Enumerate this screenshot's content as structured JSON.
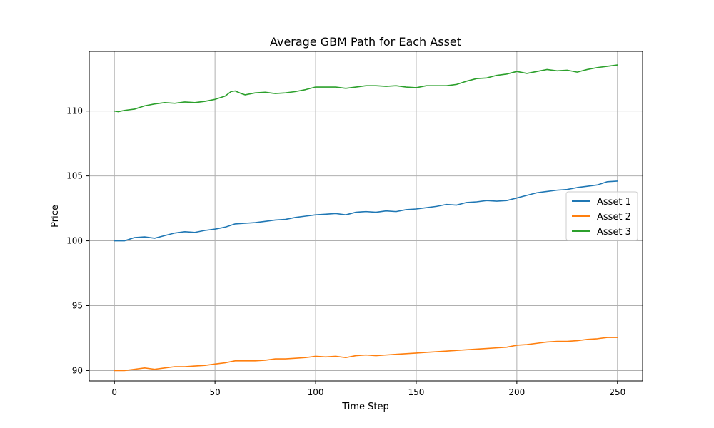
{
  "chart_data": {
    "type": "line",
    "title": "Average GBM Path for Each Asset",
    "xlabel": "Time Step",
    "ylabel": "Price",
    "xlim": [
      -12.5,
      262.5
    ],
    "ylim": [
      89.2,
      114.6
    ],
    "xticks": [
      0,
      50,
      100,
      150,
      200,
      250
    ],
    "yticks": [
      90,
      95,
      100,
      105,
      110
    ],
    "grid": true,
    "legend_position": "center-right",
    "series": [
      {
        "name": "Asset 1",
        "color": "#1f77b4",
        "points": [
          [
            0,
            100.0
          ],
          [
            5,
            100.0
          ],
          [
            10,
            100.25
          ],
          [
            15,
            100.3
          ],
          [
            20,
            100.2
          ],
          [
            25,
            100.4
          ],
          [
            30,
            100.6
          ],
          [
            35,
            100.7
          ],
          [
            40,
            100.65
          ],
          [
            45,
            100.8
          ],
          [
            50,
            100.9
          ],
          [
            55,
            101.05
          ],
          [
            60,
            101.3
          ],
          [
            65,
            101.35
          ],
          [
            70,
            101.4
          ],
          [
            75,
            101.5
          ],
          [
            80,
            101.6
          ],
          [
            85,
            101.65
          ],
          [
            90,
            101.8
          ],
          [
            95,
            101.9
          ],
          [
            100,
            102.0
          ],
          [
            105,
            102.05
          ],
          [
            110,
            102.1
          ],
          [
            115,
            102.0
          ],
          [
            120,
            102.2
          ],
          [
            125,
            102.25
          ],
          [
            130,
            102.2
          ],
          [
            135,
            102.3
          ],
          [
            140,
            102.25
          ],
          [
            145,
            102.4
          ],
          [
            150,
            102.45
          ],
          [
            155,
            102.55
          ],
          [
            160,
            102.65
          ],
          [
            165,
            102.8
          ],
          [
            170,
            102.75
          ],
          [
            175,
            102.95
          ],
          [
            180,
            103.0
          ],
          [
            185,
            103.1
          ],
          [
            190,
            103.05
          ],
          [
            195,
            103.1
          ],
          [
            200,
            103.3
          ],
          [
            205,
            103.5
          ],
          [
            210,
            103.7
          ],
          [
            215,
            103.8
          ],
          [
            220,
            103.9
          ],
          [
            225,
            103.95
          ],
          [
            230,
            104.1
          ],
          [
            235,
            104.2
          ],
          [
            240,
            104.3
          ],
          [
            245,
            104.55
          ],
          [
            250,
            104.6
          ]
        ]
      },
      {
        "name": "Asset 2",
        "color": "#ff7f0e",
        "points": [
          [
            0,
            90.0
          ],
          [
            5,
            90.0
          ],
          [
            10,
            90.1
          ],
          [
            15,
            90.2
          ],
          [
            20,
            90.1
          ],
          [
            25,
            90.2
          ],
          [
            30,
            90.3
          ],
          [
            35,
            90.3
          ],
          [
            40,
            90.35
          ],
          [
            45,
            90.4
          ],
          [
            50,
            90.5
          ],
          [
            55,
            90.6
          ],
          [
            60,
            90.75
          ],
          [
            65,
            90.75
          ],
          [
            70,
            90.75
          ],
          [
            75,
            90.8
          ],
          [
            80,
            90.9
          ],
          [
            85,
            90.9
          ],
          [
            90,
            90.95
          ],
          [
            95,
            91.0
          ],
          [
            100,
            91.1
          ],
          [
            105,
            91.05
          ],
          [
            110,
            91.1
          ],
          [
            115,
            91.0
          ],
          [
            120,
            91.15
          ],
          [
            125,
            91.2
          ],
          [
            130,
            91.15
          ],
          [
            135,
            91.2
          ],
          [
            140,
            91.25
          ],
          [
            145,
            91.3
          ],
          [
            150,
            91.35
          ],
          [
            155,
            91.4
          ],
          [
            160,
            91.45
          ],
          [
            165,
            91.5
          ],
          [
            170,
            91.55
          ],
          [
            175,
            91.6
          ],
          [
            180,
            91.65
          ],
          [
            185,
            91.7
          ],
          [
            190,
            91.75
          ],
          [
            195,
            91.8
          ],
          [
            200,
            91.95
          ],
          [
            205,
            92.0
          ],
          [
            210,
            92.1
          ],
          [
            215,
            92.2
          ],
          [
            220,
            92.25
          ],
          [
            225,
            92.25
          ],
          [
            230,
            92.3
          ],
          [
            235,
            92.4
          ],
          [
            240,
            92.45
          ],
          [
            245,
            92.55
          ],
          [
            250,
            92.55
          ]
        ]
      },
      {
        "name": "Asset 3",
        "color": "#2ca02c",
        "points": [
          [
            0,
            110.0
          ],
          [
            2,
            109.95
          ],
          [
            5,
            110.05
          ],
          [
            10,
            110.15
          ],
          [
            15,
            110.4
          ],
          [
            20,
            110.55
          ],
          [
            25,
            110.65
          ],
          [
            30,
            110.6
          ],
          [
            35,
            110.7
          ],
          [
            40,
            110.65
          ],
          [
            45,
            110.75
          ],
          [
            50,
            110.9
          ],
          [
            55,
            111.15
          ],
          [
            58,
            111.5
          ],
          [
            60,
            111.55
          ],
          [
            63,
            111.35
          ],
          [
            65,
            111.25
          ],
          [
            70,
            111.4
          ],
          [
            75,
            111.45
          ],
          [
            80,
            111.35
          ],
          [
            85,
            111.4
          ],
          [
            90,
            111.5
          ],
          [
            95,
            111.65
          ],
          [
            100,
            111.85
          ],
          [
            105,
            111.85
          ],
          [
            110,
            111.85
          ],
          [
            115,
            111.75
          ],
          [
            120,
            111.85
          ],
          [
            125,
            111.95
          ],
          [
            130,
            111.95
          ],
          [
            135,
            111.9
          ],
          [
            140,
            111.95
          ],
          [
            145,
            111.85
          ],
          [
            150,
            111.8
          ],
          [
            155,
            111.95
          ],
          [
            160,
            111.95
          ],
          [
            165,
            111.95
          ],
          [
            170,
            112.05
          ],
          [
            175,
            112.3
          ],
          [
            180,
            112.5
          ],
          [
            185,
            112.55
          ],
          [
            190,
            112.75
          ],
          [
            195,
            112.85
          ],
          [
            200,
            113.05
          ],
          [
            205,
            112.9
          ],
          [
            210,
            113.05
          ],
          [
            215,
            113.2
          ],
          [
            220,
            113.1
          ],
          [
            225,
            113.15
          ],
          [
            230,
            113.0
          ],
          [
            235,
            113.2
          ],
          [
            240,
            113.35
          ],
          [
            245,
            113.45
          ],
          [
            250,
            113.55
          ]
        ]
      }
    ]
  }
}
